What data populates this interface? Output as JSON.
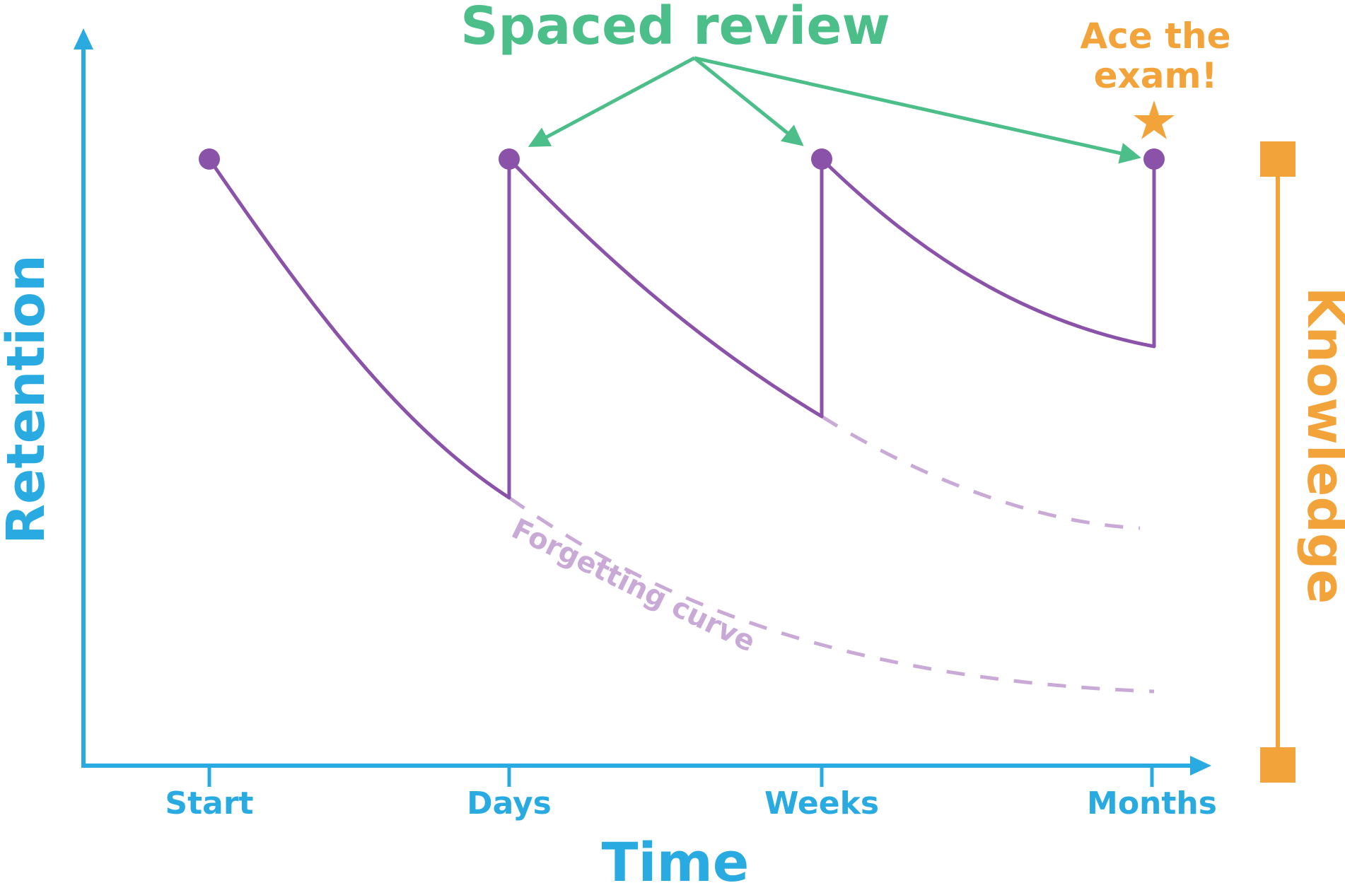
{
  "colors": {
    "axis": "#29abe2",
    "curve": "#8a52a8",
    "forgetting_dashed": "#c9a9d6",
    "spaced_review": "#4cbe8a",
    "knowledge": "#f2a33a"
  },
  "axes": {
    "x_label": "Time",
    "y_label": "Retention",
    "ticks": [
      "Start",
      "Days",
      "Weeks",
      "Months"
    ]
  },
  "annotations": {
    "spaced_review": "Spaced review",
    "ace_line1": "Ace the",
    "ace_line2": "exam!",
    "forgetting_curve": "Forgetting curve"
  },
  "knowledge_scale": {
    "label": "Knowledge"
  },
  "icons": {
    "goal": "star-icon",
    "review_point": "dot-icon",
    "scale_end": "square-icon"
  }
}
